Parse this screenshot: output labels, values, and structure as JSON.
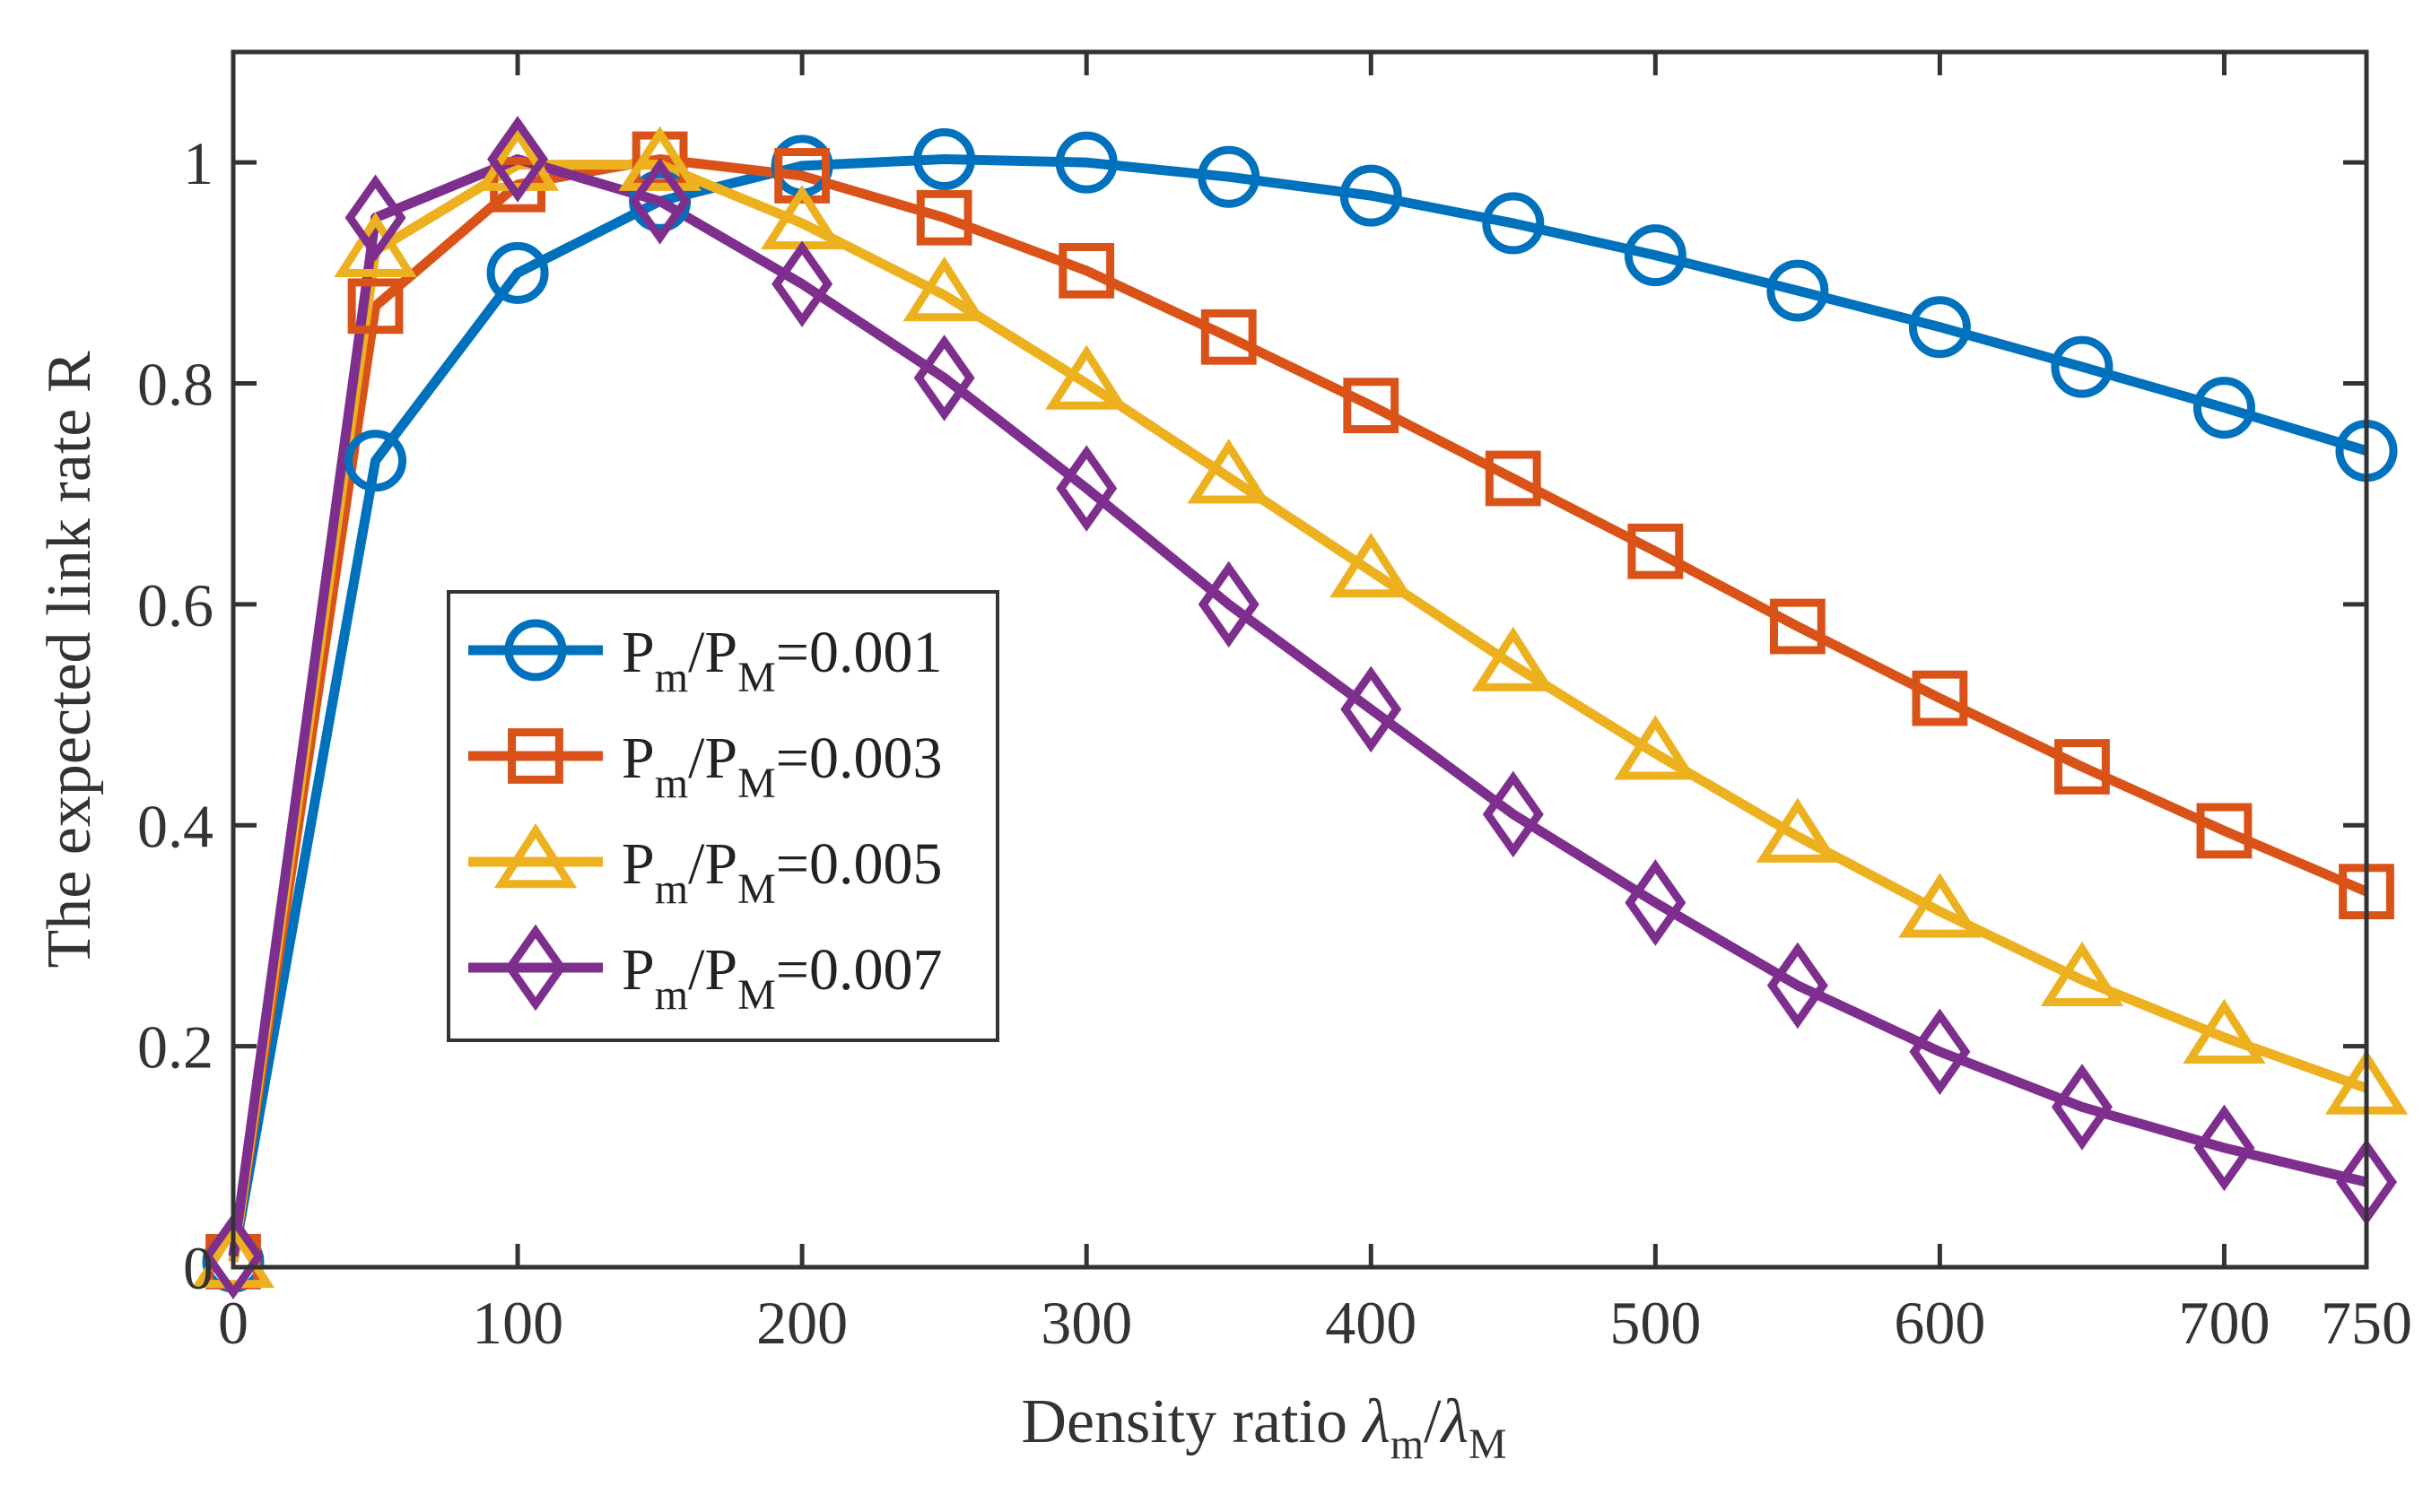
{
  "chart_data": {
    "type": "line",
    "title": "",
    "xlabel": "Density ratio",
    "xlabel_symbols": {
      "symbol": "λ",
      "num_sub": "m",
      "slash": "/",
      "den_sub": "M"
    },
    "ylabel": "The expected link rate R",
    "xlim": [
      0,
      750
    ],
    "ylim": [
      0,
      1.1
    ],
    "xticks": [
      0,
      100,
      200,
      300,
      400,
      500,
      600,
      700,
      750
    ],
    "xtick_labels": [
      "0",
      "100",
      "200",
      "300",
      "400",
      "500",
      "600",
      "700",
      "750"
    ],
    "yticks": [
      0,
      0.2,
      0.4,
      0.6,
      0.8,
      1
    ],
    "ytick_labels": [
      "0",
      "0.2",
      "0.4",
      "0.6",
      "0.8",
      "1"
    ],
    "grid": false,
    "legend_position": "center-left",
    "x": [
      0,
      50,
      100,
      150,
      200,
      250,
      300,
      350,
      400,
      450,
      500,
      550,
      600,
      650,
      700,
      750
    ],
    "series": [
      {
        "name": "Pm/PM=0.001",
        "label_parts": {
          "p": "P",
          "sub1": "m",
          "slash": "/",
          "sub2": "M",
          "value": "=0.001"
        },
        "color": "#0072BD",
        "marker": "circle",
        "values": [
          0.005,
          0.73,
          0.9,
          0.965,
          0.997,
          1.003,
          1.0,
          0.987,
          0.97,
          0.945,
          0.916,
          0.884,
          0.851,
          0.815,
          0.778,
          0.739
        ]
      },
      {
        "name": "Pm/PM=0.003",
        "label_parts": {
          "p": "P",
          "sub1": "m",
          "slash": "/",
          "sub2": "M",
          "value": "=0.003"
        },
        "color": "#D95319",
        "marker": "square",
        "values": [
          0.005,
          0.87,
          0.98,
          1.003,
          0.988,
          0.95,
          0.902,
          0.842,
          0.78,
          0.714,
          0.648,
          0.58,
          0.515,
          0.453,
          0.395,
          0.34
        ]
      },
      {
        "name": "Pm/PM=0.005",
        "label_parts": {
          "p": "P",
          "sub1": "m",
          "slash": "/",
          "sub2": "M",
          "value": "=0.005"
        },
        "color": "#EDB120",
        "marker": "triangle",
        "values": [
          0.005,
          0.92,
          0.998,
          0.998,
          0.945,
          0.88,
          0.8,
          0.715,
          0.63,
          0.545,
          0.465,
          0.39,
          0.322,
          0.26,
          0.208,
          0.162
        ]
      },
      {
        "name": "Pm/PM=0.007",
        "label_parts": {
          "p": "P",
          "sub1": "m",
          "slash": "/",
          "sub2": "M",
          "value": "=0.007"
        },
        "color": "#7E2F8E",
        "marker": "diamond",
        "values": [
          0.01,
          0.95,
          1.003,
          0.965,
          0.89,
          0.805,
          0.705,
          0.6,
          0.505,
          0.41,
          0.33,
          0.255,
          0.195,
          0.145,
          0.108,
          0.077
        ]
      }
    ]
  }
}
